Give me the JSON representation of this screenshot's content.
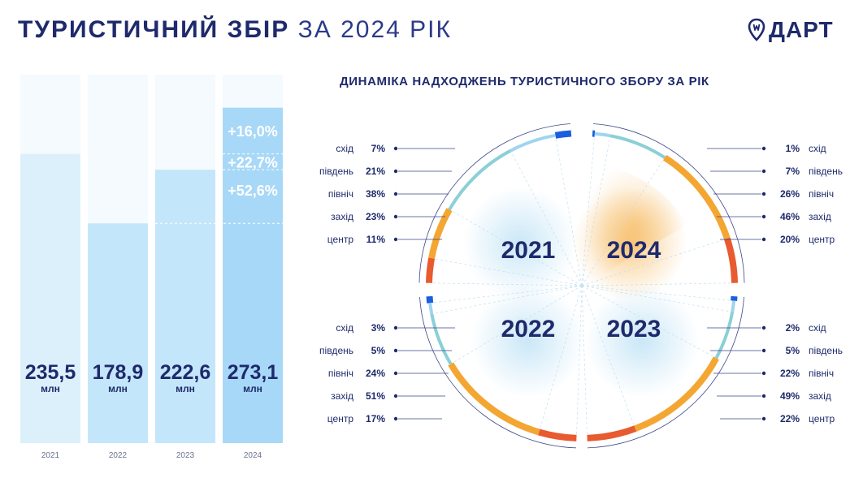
{
  "header": {
    "title_bold": "ТУРИСТИЧНИЙ ЗБІР",
    "title_light": "ЗА 2024 РІК",
    "logo_text": "ДАРТ"
  },
  "subtitle": "ДИНАМІКА НАДХОДЖЕНЬ ТУРИСТИЧНОГО ЗБОРУ ЗА РІК",
  "colors": {
    "navy": "#1e2a6b",
    "bar_light": "#dcf0fc",
    "bar_mid": "#c4e6fa",
    "bar_dark": "#a8d8f7",
    "ring_blue": "#1a5fe0",
    "ring_light_blue": "#9fd4f0",
    "ring_teal": "#8ad0d6",
    "ring_orange": "#f4a633",
    "ring_red": "#e85a2f"
  },
  "chart_data": [
    {
      "type": "bar",
      "categories": [
        "2021",
        "2022",
        "2023",
        "2024"
      ],
      "values": [
        235.5,
        178.9,
        222.6,
        273.1
      ],
      "value_labels": [
        "235,5",
        "178,9",
        "222,6",
        "273,1"
      ],
      "unit": "млн",
      "ylim": [
        0,
        300
      ],
      "growth_annotations": [
        "+16,0%",
        "+22,7%",
        "+52,6%"
      ],
      "grid": false
    },
    {
      "type": "pie",
      "title": "ДИНАМІКА НАДХОДЖЕНЬ ТУРИСТИЧНОГО ЗБОРУ ЗА РІК",
      "categories": [
        "схід",
        "південь",
        "північ",
        "захід",
        "центр"
      ],
      "category_colors": [
        "#1a5fe0",
        "#9fd4f0",
        "#8ad0d6",
        "#f4a633",
        "#e85a2f"
      ],
      "series": [
        {
          "name": "2021",
          "values": [
            7,
            21,
            38,
            23,
            11
          ],
          "labels": [
            "7%",
            "21%",
            "38%",
            "23%",
            "11%"
          ]
        },
        {
          "name": "2024",
          "values": [
            1,
            7,
            26,
            46,
            20
          ],
          "labels": [
            "1%",
            "7%",
            "26%",
            "46%",
            "20%"
          ]
        },
        {
          "name": "2022",
          "values": [
            3,
            5,
            24,
            51,
            17
          ],
          "labels": [
            "3%",
            "5%",
            "24%",
            "51%",
            "17%"
          ]
        },
        {
          "name": "2023",
          "values": [
            2,
            5,
            22,
            49,
            22
          ],
          "labels": [
            "2%",
            "5%",
            "22%",
            "49%",
            "22%"
          ]
        }
      ]
    }
  ]
}
